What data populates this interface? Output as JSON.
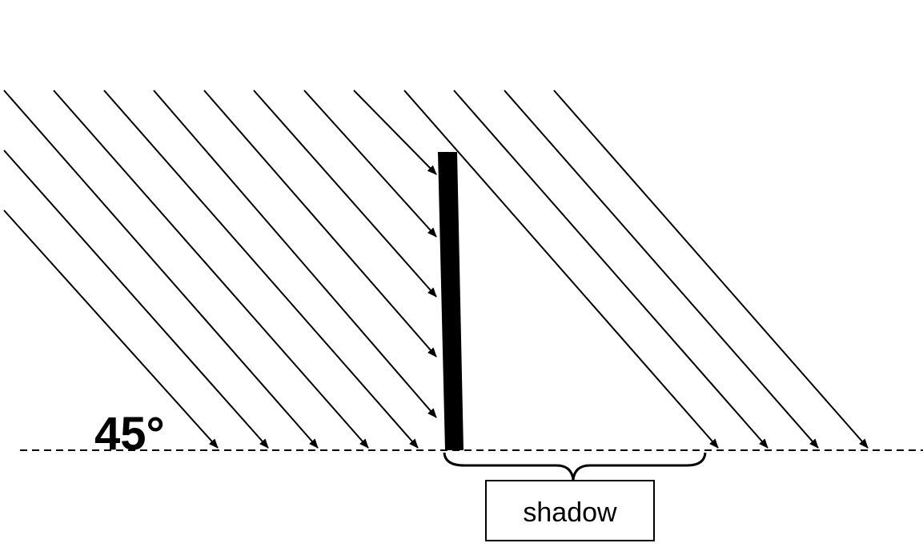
{
  "angle_label": "45°",
  "shadow_label": "shadow"
}
